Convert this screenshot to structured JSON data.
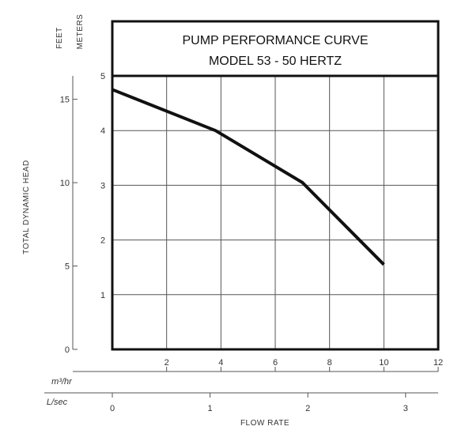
{
  "chart_data": {
    "type": "line",
    "title": "PUMP PERFORMANCE CURVE",
    "subtitle": "MODEL 53 - 50 HERTZ",
    "ylabel": "TOTAL DYNAMIC HEAD",
    "xlabel": "FLOW RATE",
    "y_unit_feet": "FEET",
    "y_unit_meters": "METERS",
    "x_unit_m3hr": "m³/hr",
    "x_unit_lsec": "L/sec",
    "x_m3hr_ticks": [
      "2",
      "4",
      "6",
      "8",
      "10",
      "12"
    ],
    "x_lsec_ticks": [
      "0",
      "1",
      "2",
      "3"
    ],
    "y_feet_ticks": [
      "0",
      "5",
      "10",
      "15"
    ],
    "y_meter_ticks": [
      "1",
      "2",
      "3",
      "4",
      "5"
    ],
    "xlim_m3hr": [
      0,
      12
    ],
    "ylim_meters": [
      0,
      5
    ],
    "grid": true,
    "series": [
      {
        "x": [
          0,
          3.8,
          7.0,
          10.0
        ],
        "y": [
          4.75,
          4.0,
          3.05,
          1.55
        ]
      }
    ],
    "colors": {
      "frame": "#111111",
      "grid": "#555555",
      "curve": "#111111"
    }
  }
}
